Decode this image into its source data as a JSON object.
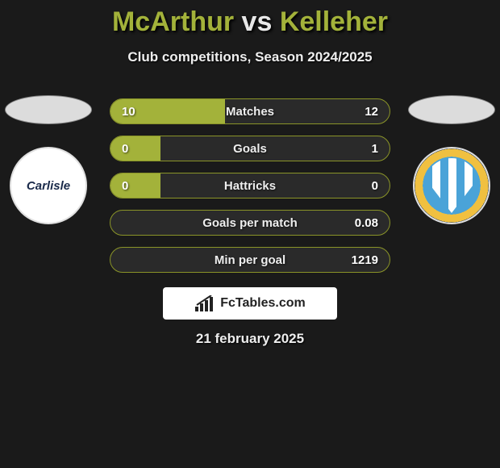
{
  "title": {
    "player1": "McArthur",
    "vs": "vs",
    "player2": "Kelleher"
  },
  "subtitle": "Club competitions, Season 2024/2025",
  "club1": {
    "label": "Carlisle"
  },
  "club2": {
    "label": ""
  },
  "stats": [
    {
      "label": "Matches",
      "v1": "10",
      "v2": "12",
      "left_pct": 41,
      "right_pct": 0
    },
    {
      "label": "Goals",
      "v1": "0",
      "v2": "1",
      "left_pct": 18,
      "right_pct": 0
    },
    {
      "label": "Hattricks",
      "v1": "0",
      "v2": "0",
      "left_pct": 18,
      "right_pct": 0
    },
    {
      "label": "Goals per match",
      "v1": "",
      "v2": "0.08",
      "left_pct": 0,
      "right_pct": 0
    },
    {
      "label": "Min per goal",
      "v1": "",
      "v2": "1219",
      "left_pct": 0,
      "right_pct": 0
    }
  ],
  "badge_text": "FcTables.com",
  "date": "21 february 2025",
  "colors": {
    "accent": "#a3b23a",
    "bar_border": "#8a9428",
    "background": "#1a1a1a",
    "text": "#eeeeee"
  }
}
